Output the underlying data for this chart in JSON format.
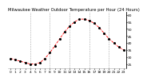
{
  "title": "Milwaukee Weather Outdoor Temperature per Hour (24 Hours)",
  "hours": [
    0,
    1,
    2,
    3,
    4,
    5,
    6,
    7,
    8,
    9,
    10,
    11,
    12,
    13,
    14,
    15,
    16,
    17,
    18,
    19,
    20,
    21,
    22,
    23
  ],
  "temps": [
    29,
    28,
    27,
    26,
    25,
    25,
    26,
    29,
    33,
    38,
    43,
    48,
    52,
    55,
    57,
    57,
    56,
    54,
    51,
    47,
    43,
    40,
    37,
    35
  ],
  "bg_color": "#ffffff",
  "plot_bg": "#ffffff",
  "dot_color": "#000000",
  "line_color": "#ff0000",
  "grid_color": "#aaaaaa",
  "text_color": "#000000",
  "ylim": [
    22,
    62
  ],
  "yticks": [
    25,
    30,
    35,
    40,
    45,
    50,
    55,
    60
  ],
  "ytick_labels": [
    "25",
    "30",
    "35",
    "40",
    "45",
    "50",
    "55",
    "60"
  ],
  "vgrid_hours": [
    4,
    8,
    12,
    16,
    20
  ],
  "title_fontsize": 3.8,
  "tick_fontsize": 3.2
}
